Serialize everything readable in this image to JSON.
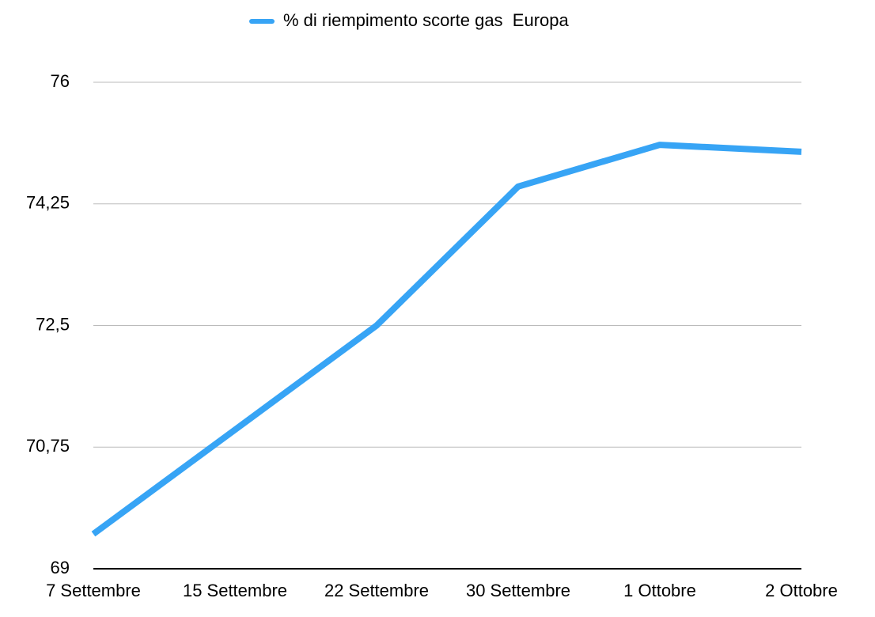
{
  "chart_data": {
    "type": "line",
    "categories": [
      "7 Settembre",
      "15 Settembre",
      "22 Settembre",
      "30 Settembre",
      "1 Ottobre",
      "2 Ottobre"
    ],
    "series": [
      {
        "name": "% di riempimento scorte gas  Europa",
        "color": "#37a4f5",
        "values": [
          69.5,
          71.0,
          72.5,
          74.5,
          75.1,
          75.0
        ]
      }
    ],
    "ylim": [
      69,
      76
    ],
    "yticks": [
      69,
      {
        "value": 70.75,
        "label": "70,75"
      },
      {
        "value": 72.5,
        "label": "72,5"
      },
      {
        "value": 74.25,
        "label": "74,25"
      },
      76
    ],
    "grid": true,
    "legend": "top"
  }
}
